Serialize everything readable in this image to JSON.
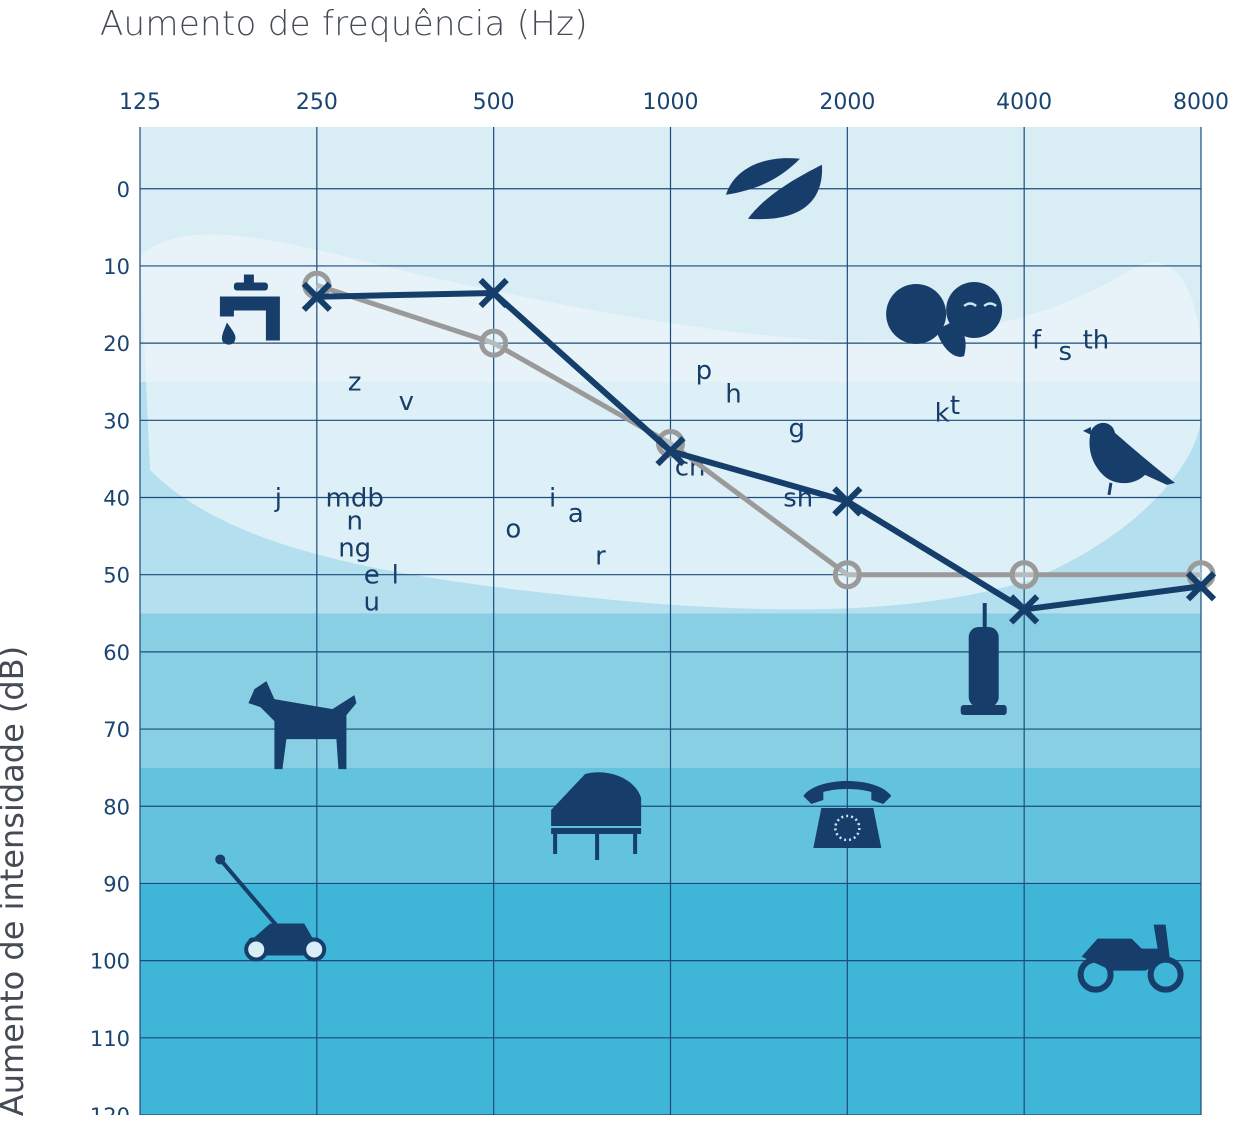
{
  "chart_data": {
    "type": "line",
    "title": "",
    "xlabel": "Aumento de frequência (Hz)",
    "ylabel": "Aumento de intensidade (dB)",
    "x": [
      "125",
      "250",
      "500",
      "1000",
      "2000",
      "4000",
      "8000"
    ],
    "y_ticks": [
      "0",
      "10",
      "20",
      "30",
      "40",
      "50",
      "60",
      "70",
      "80",
      "90",
      "100",
      "110",
      "120"
    ],
    "ylim": [
      -8,
      120
    ],
    "y_inverted": true,
    "grid": true,
    "legend": "none",
    "series": [
      {
        "marker": "x",
        "color": "#163e6b",
        "points": [
          {
            "x": "250",
            "y": 14
          },
          {
            "x": "500",
            "y": 13.5
          },
          {
            "x": "1000",
            "y": 34
          },
          {
            "x": "2000",
            "y": 40.5
          },
          {
            "x": "4000",
            "y": 54.5
          },
          {
            "x": "8000",
            "y": 51.5
          }
        ]
      },
      {
        "marker": "o",
        "color": "#9a9a9a",
        "points": [
          {
            "x": "250",
            "y": 12.5
          },
          {
            "x": "500",
            "y": 20
          },
          {
            "x": "1000",
            "y": 33
          },
          {
            "x": "2000",
            "y": 50
          },
          {
            "x": "4000",
            "y": 50
          },
          {
            "x": "8000",
            "y": 50
          }
        ]
      }
    ],
    "speech_sounds": [
      {
        "text": "z",
        "x": 290,
        "y": 25
      },
      {
        "text": "v",
        "x": 355,
        "y": 27.5
      },
      {
        "text": "j",
        "x": 215,
        "y": 40
      },
      {
        "text": "mdb",
        "x": 290,
        "y": 40
      },
      {
        "text": "n",
        "x": 290,
        "y": 43
      },
      {
        "text": "ng",
        "x": 290,
        "y": 46.5
      },
      {
        "text": "e",
        "x": 310,
        "y": 50
      },
      {
        "text": "l",
        "x": 340,
        "y": 50
      },
      {
        "text": "u",
        "x": 310,
        "y": 53.5
      },
      {
        "text": "o",
        "x": 540,
        "y": 44
      },
      {
        "text": "i",
        "x": 630,
        "y": 40
      },
      {
        "text": "a",
        "x": 690,
        "y": 42
      },
      {
        "text": "r",
        "x": 760,
        "y": 47.5
      },
      {
        "text": "p",
        "x": 1140,
        "y": 23.5
      },
      {
        "text": "h",
        "x": 1280,
        "y": 26.5
      },
      {
        "text": "g",
        "x": 1640,
        "y": 31
      },
      {
        "text": "ch",
        "x": 1080,
        "y": 36
      },
      {
        "text": "sh",
        "x": 1650,
        "y": 40
      },
      {
        "text": "k",
        "x": 2900,
        "y": 29
      },
      {
        "text": "t",
        "x": 3050,
        "y": 28
      },
      {
        "text": "f",
        "x": 4200,
        "y": 19.5
      },
      {
        "text": "s",
        "x": 4700,
        "y": 21
      },
      {
        "text": "th",
        "x": 5300,
        "y": 19.5
      }
    ],
    "illustrations": [
      {
        "icon": "dripping-faucet-icon",
        "x": 200,
        "y": 15
      },
      {
        "icon": "leaves-icon",
        "x": 1500,
        "y": 0
      },
      {
        "icon": "whispering-faces-icon",
        "x": 2900,
        "y": 17
      },
      {
        "icon": "bird-icon",
        "x": 5800,
        "y": 35
      },
      {
        "icon": "vacuum-cleaner-icon",
        "x": 3400,
        "y": 63
      },
      {
        "icon": "dog-icon",
        "x": 240,
        "y": 70
      },
      {
        "icon": "piano-icon",
        "x": 750,
        "y": 81
      },
      {
        "icon": "telephone-icon",
        "x": 2000,
        "y": 81
      },
      {
        "icon": "lawn-mower-icon",
        "x": 220,
        "y": 97
      },
      {
        "icon": "motorcycle-icon",
        "x": 6000,
        "y": 100
      }
    ],
    "colors": {
      "band_1": "#d9edf5",
      "band_2": "#b3dfee",
      "band_3": "#88cfe4",
      "band_4": "#63c3de",
      "band_5": "#3fb5d8",
      "speech_banana": "#eaf5fa",
      "grid": "#1b4c7b",
      "icons": "#173e6a"
    }
  }
}
